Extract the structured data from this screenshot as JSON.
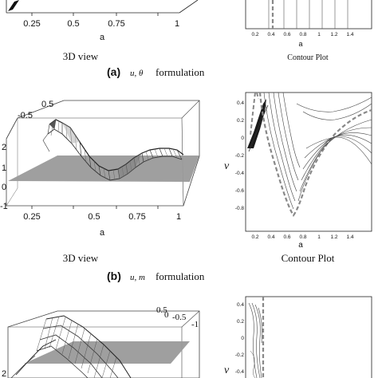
{
  "figure": {
    "row_a": {
      "label": "(a)",
      "formulation_vars": "u, θ",
      "formulation_word": "formulation",
      "view3d_caption": "3D view",
      "contour_caption": "Contour Plot",
      "view3d_ticks_a": [
        "0.25",
        "0.5",
        "0.75",
        "1"
      ],
      "view3d_axis_label": "a",
      "contour_ticks_a": [
        "0.2",
        "0.4",
        "0.6",
        "0.8",
        "1",
        "1.2",
        "1.4"
      ],
      "contour_axis_label": "a"
    },
    "row_b": {
      "label": "(b)",
      "formulation_vars": "u, m",
      "formulation_word": "formulation",
      "view3d_caption": "3D view",
      "contour_caption": "Contour Plot",
      "view3d_ticks_a": [
        "0.25",
        "0.5",
        "0.75",
        "1"
      ],
      "view3d_ticks_z": [
        "2",
        "1",
        "0",
        "-1"
      ],
      "view3d_ticks_top": [
        "0.5",
        "-0.5"
      ],
      "view3d_axis_label": "a",
      "contour_ticks_a": [
        "0.2",
        "0.4",
        "0.6",
        "0.8",
        "1",
        "1.2",
        "1.4"
      ],
      "contour_ticks_nu": [
        "0.4",
        "0.2",
        "0",
        "-0.2",
        "-0.4",
        "-0.6",
        "-0.8"
      ],
      "contour_axis_label": "a",
      "contour_axis_nu": "ν"
    },
    "row_c": {
      "view3d_ticks_top": [
        "0.5",
        "0",
        "-0.5",
        "-1"
      ],
      "view3d_ticks_z": [
        "2"
      ],
      "contour_ticks_nu": [
        "0.4",
        "0.2",
        "0",
        "-0.2",
        "-0.4"
      ],
      "contour_axis_nu": "ν"
    }
  }
}
